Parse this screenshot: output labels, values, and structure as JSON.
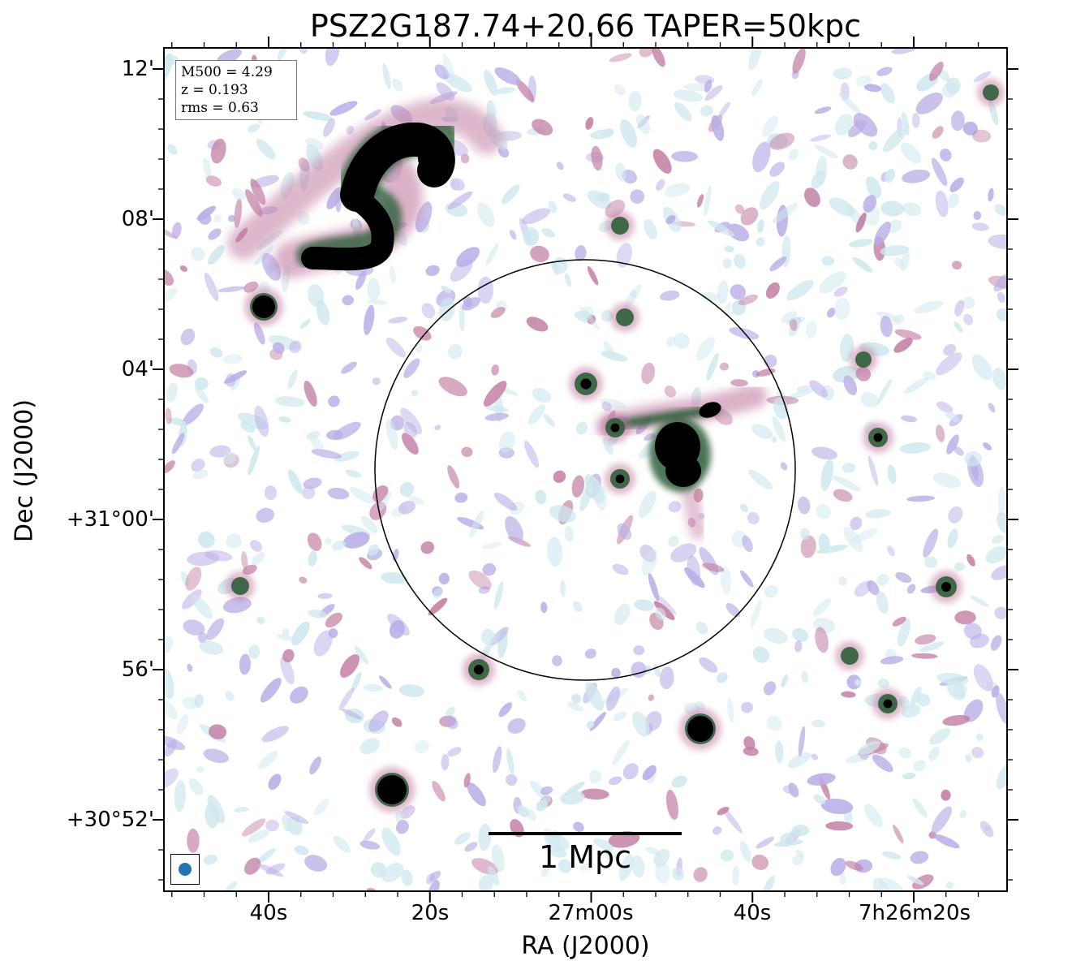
{
  "title": "PSZ2G187.74+20.66 TAPER=50kpc",
  "axes": {
    "xlabel": "RA (J2000)",
    "ylabel": "Dec (J2000)",
    "xticks": [
      "40s",
      "20s",
      "27m00s",
      "40s",
      "7h26m20s"
    ],
    "yticks": [
      "12'",
      "08'",
      "04'",
      "+31°00'",
      "56'",
      "+30°52'"
    ]
  },
  "info_box": {
    "lines": [
      "M500 = 4.29",
      "z = 0.193",
      "rms = 0.63"
    ]
  },
  "scale_bar": {
    "label": "1 Mpc"
  },
  "colors": {
    "faint_emission": "#cfe8ee",
    "lavender": "#b9aee6",
    "mauve": "#c27ea3",
    "dark_green": "#2f5e3a",
    "core": "#000000",
    "beam": "#1f77b4",
    "circle": "#000000"
  }
}
